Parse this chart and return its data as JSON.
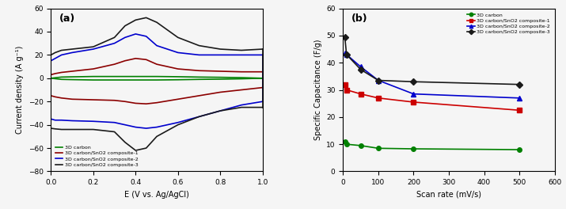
{
  "panel_a": {
    "title": "(a)",
    "xlabel": "E (V vs. Ag/AgCl)",
    "ylabel": "Current density (A g⁻¹)",
    "xlim": [
      0.0,
      1.0
    ],
    "ylim": [
      -80,
      60
    ],
    "yticks": [
      -80,
      -60,
      -40,
      -20,
      0,
      20,
      40,
      60
    ],
    "xticks": [
      0.0,
      0.2,
      0.4,
      0.6,
      0.8,
      1.0
    ],
    "series": [
      {
        "label": "3D carbon",
        "color": "#008000",
        "upper_x": [
          0.0,
          0.05,
          0.1,
          0.2,
          0.3,
          0.4,
          0.5,
          0.6,
          0.7,
          0.8,
          0.9,
          1.0
        ],
        "upper_y": [
          0.0,
          1.0,
          1.2,
          1.5,
          1.5,
          1.5,
          1.5,
          1.3,
          1.0,
          0.8,
          0.5,
          0.0
        ],
        "lower_x": [
          0.0,
          0.05,
          0.1,
          0.2,
          0.3,
          0.4,
          0.5,
          0.6,
          0.7,
          0.8,
          0.9,
          1.0
        ],
        "lower_y": [
          0.0,
          -1.0,
          -1.2,
          -1.5,
          -1.5,
          -1.5,
          -1.5,
          -1.3,
          -1.0,
          -0.8,
          -0.5,
          0.0
        ]
      },
      {
        "label": "3D carbon/SnO2 composite-1",
        "color": "#8B0000",
        "upper_x": [
          0.0,
          0.02,
          0.05,
          0.1,
          0.2,
          0.3,
          0.35,
          0.4,
          0.45,
          0.5,
          0.6,
          0.7,
          0.8,
          0.9,
          1.0
        ],
        "upper_y": [
          3.0,
          4.0,
          5.0,
          6.0,
          8.0,
          12.0,
          15.0,
          17.0,
          16.0,
          12.0,
          8.0,
          6.5,
          6.0,
          5.5,
          5.5
        ],
        "lower_x": [
          0.0,
          0.02,
          0.05,
          0.1,
          0.2,
          0.3,
          0.35,
          0.4,
          0.45,
          0.5,
          0.6,
          0.7,
          0.8,
          0.9,
          1.0
        ],
        "lower_y": [
          -15.0,
          -16.0,
          -17.0,
          -18.0,
          -18.5,
          -19.0,
          -20.0,
          -21.5,
          -22.0,
          -21.0,
          -18.0,
          -15.0,
          -12.0,
          -10.0,
          -8.0
        ]
      },
      {
        "label": "3D carbon/SnO2 composite-2",
        "color": "#0000CD",
        "upper_x": [
          0.0,
          0.02,
          0.05,
          0.1,
          0.2,
          0.3,
          0.35,
          0.4,
          0.45,
          0.5,
          0.6,
          0.7,
          0.8,
          0.9,
          1.0
        ],
        "upper_y": [
          15.0,
          17.0,
          20.0,
          22.0,
          25.0,
          30.0,
          35.0,
          38.0,
          36.0,
          28.0,
          22.0,
          20.0,
          20.0,
          20.0,
          20.0
        ],
        "lower_x": [
          0.0,
          0.02,
          0.05,
          0.1,
          0.2,
          0.3,
          0.35,
          0.4,
          0.45,
          0.5,
          0.6,
          0.7,
          0.8,
          0.9,
          1.0
        ],
        "lower_y": [
          -35.0,
          -36.0,
          -36.0,
          -36.5,
          -37.0,
          -38.0,
          -40.0,
          -42.0,
          -43.0,
          -42.0,
          -38.0,
          -33.0,
          -28.0,
          -23.0,
          -20.0
        ]
      },
      {
        "label": "3D carbon/SnO2 composite-3",
        "color": "#1a1a1a",
        "upper_x": [
          0.0,
          0.02,
          0.05,
          0.1,
          0.15,
          0.2,
          0.3,
          0.35,
          0.4,
          0.45,
          0.5,
          0.6,
          0.7,
          0.8,
          0.9,
          1.0
        ],
        "upper_y": [
          20.0,
          22.0,
          24.0,
          25.0,
          26.0,
          27.0,
          35.0,
          45.0,
          50.0,
          52.0,
          48.0,
          35.0,
          28.0,
          25.0,
          24.0,
          25.0
        ],
        "lower_x": [
          0.0,
          0.02,
          0.05,
          0.1,
          0.15,
          0.2,
          0.3,
          0.35,
          0.4,
          0.45,
          0.5,
          0.6,
          0.7,
          0.8,
          0.9,
          1.0
        ],
        "lower_y": [
          -43.0,
          -43.5,
          -44.0,
          -44.0,
          -44.0,
          -44.0,
          -46.0,
          -55.0,
          -62.0,
          -60.0,
          -50.0,
          -40.0,
          -33.0,
          -28.0,
          -25.0,
          -25.0
        ]
      }
    ]
  },
  "panel_b": {
    "title": "(b)",
    "xlabel": "Scan rate (mV/s)",
    "ylabel": "Specific Capacitance (F/g)",
    "xlim": [
      0,
      600
    ],
    "ylim": [
      0,
      60
    ],
    "yticks": [
      0,
      10,
      20,
      30,
      40,
      50,
      60
    ],
    "xticks": [
      0,
      100,
      200,
      300,
      400,
      500,
      600
    ],
    "series": [
      {
        "label": "3D carbon",
        "color": "#008000",
        "marker": "o",
        "x": [
          5,
          10,
          50,
          100,
          200,
          500
        ],
        "y": [
          11.0,
          10.0,
          9.5,
          8.5,
          8.3,
          8.0
        ]
      },
      {
        "label": "3D carbon/SnO2 composite-1",
        "color": "#CC0000",
        "marker": "s",
        "x": [
          5,
          10,
          50,
          100,
          200,
          500
        ],
        "y": [
          32.0,
          30.0,
          28.5,
          27.0,
          25.5,
          22.5
        ]
      },
      {
        "label": "3D carbon/SnO2 composite-2",
        "color": "#0000CD",
        "marker": "^",
        "x": [
          5,
          10,
          50,
          100,
          200,
          500
        ],
        "y": [
          43.5,
          43.0,
          38.5,
          33.5,
          28.5,
          27.0
        ]
      },
      {
        "label": "3D carbon/SnO2 composite-3",
        "color": "#1a1a1a",
        "marker": "D",
        "x": [
          5,
          10,
          50,
          100,
          200,
          500
        ],
        "y": [
          49.5,
          43.0,
          37.5,
          33.5,
          33.0,
          32.0
        ]
      }
    ]
  },
  "background_color": "#f5f5f5"
}
